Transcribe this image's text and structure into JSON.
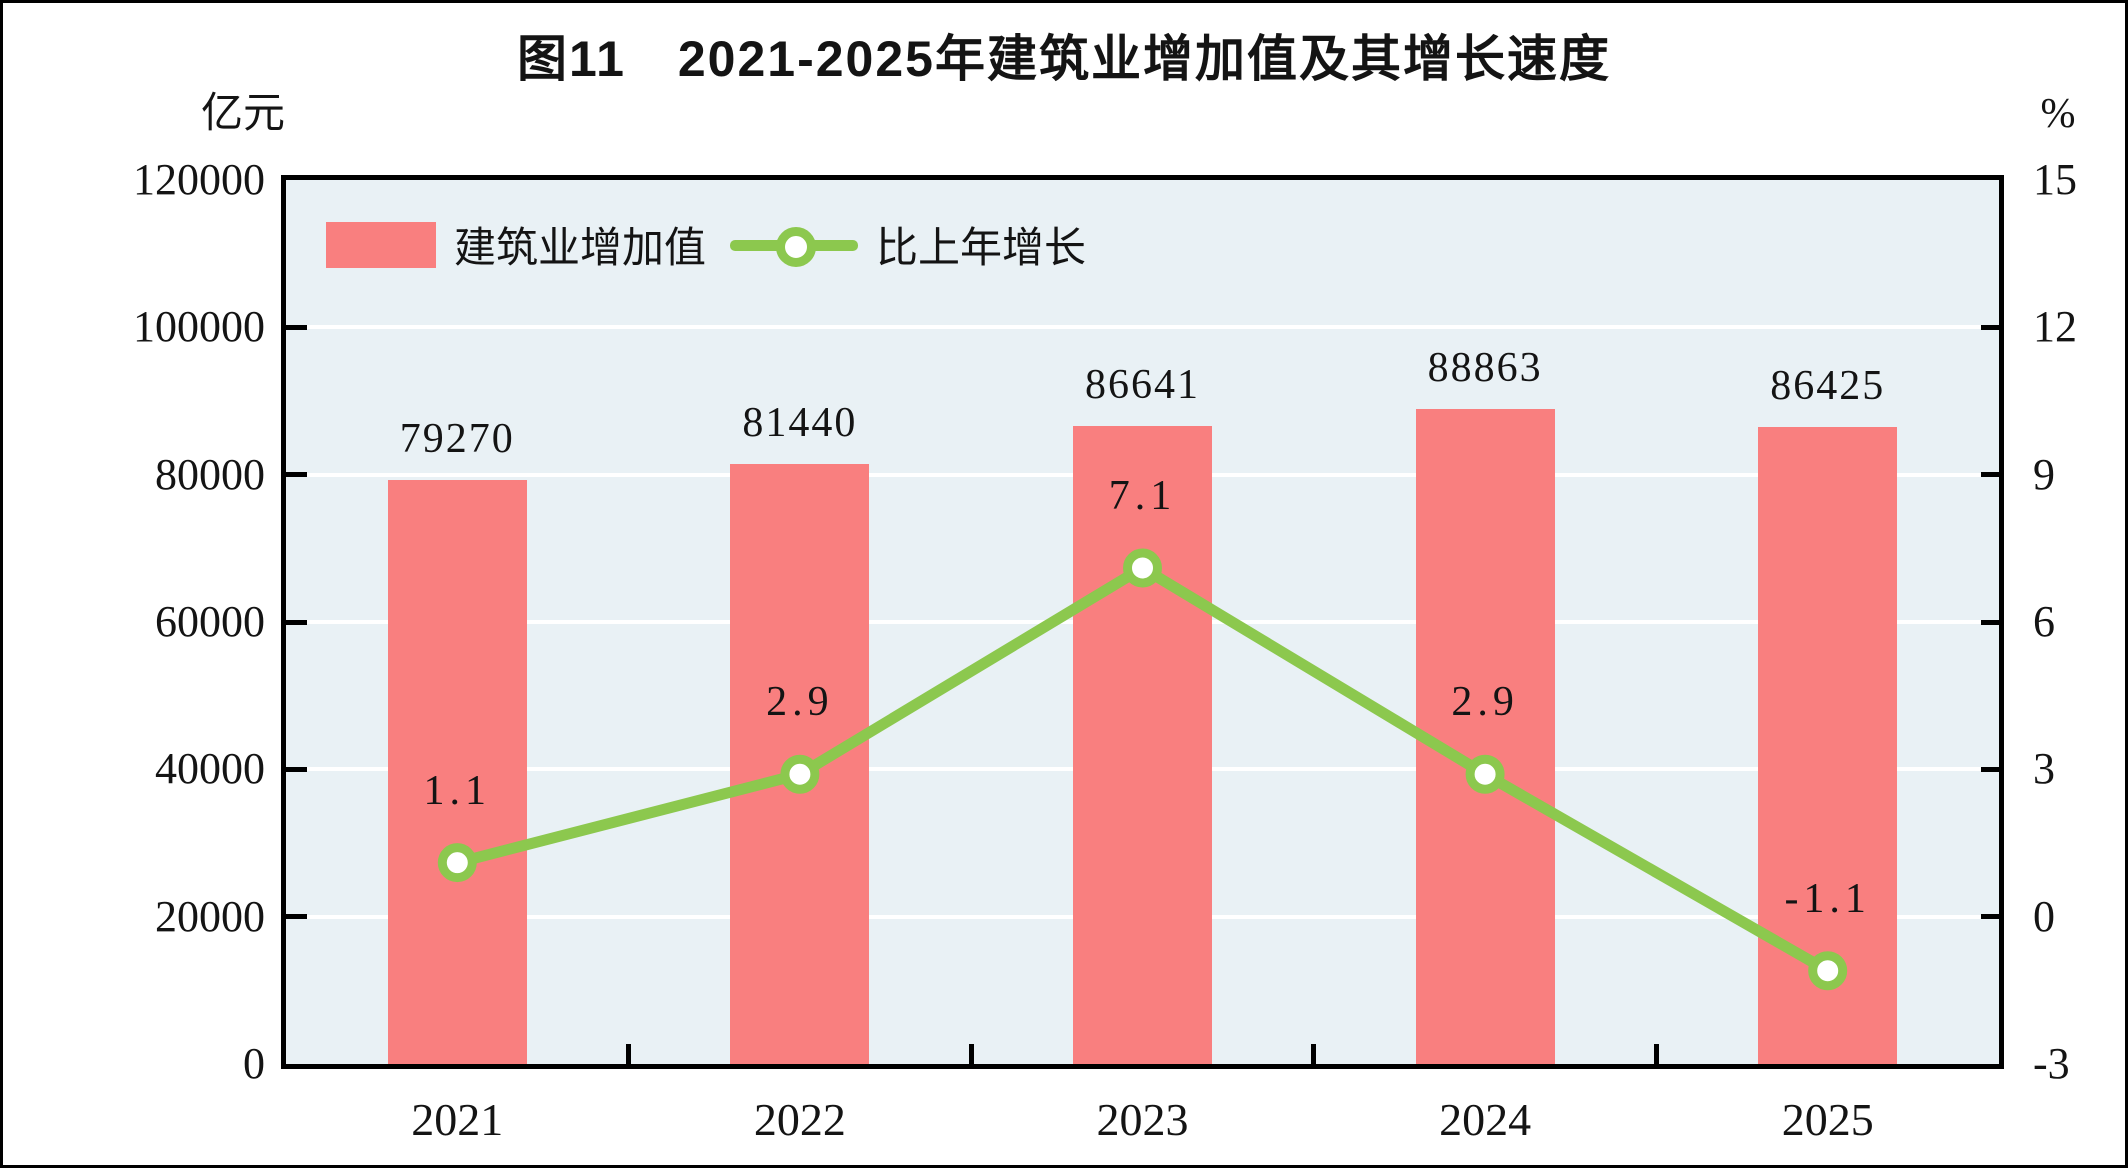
{
  "figure": {
    "title": "图11　2021-2025年建筑业增加值及其增长速度",
    "left_axis_unit": "亿元",
    "right_axis_unit": "%"
  },
  "legend": {
    "items": [
      {
        "label": "建筑业增加值",
        "marker": "bar-swatch"
      },
      {
        "label": "比上年增长",
        "marker": "line-with-dot"
      }
    ]
  },
  "chart_data": {
    "type": "bar",
    "subtype": "dual-axis bar + line",
    "title": "图11　2021-2025年建筑业增加值及其增长速度",
    "categories": [
      "2021",
      "2022",
      "2023",
      "2024",
      "2025"
    ],
    "series": [
      {
        "name": "建筑业增加值",
        "type": "bar",
        "axis": "left",
        "values": [
          79270,
          81440,
          86641,
          88863,
          86425
        ],
        "data_labels": [
          "79270",
          "81440",
          "86641",
          "88863",
          "86425"
        ]
      },
      {
        "name": "比上年增长",
        "type": "line",
        "axis": "right",
        "values": [
          1.1,
          2.9,
          7.1,
          2.9,
          -1.1
        ],
        "data_labels": [
          "1.1",
          "2.9",
          "7.1",
          "2.9",
          "-1.1"
        ]
      }
    ],
    "left_axis": {
      "label": "亿元",
      "min": 0,
      "max": 120000,
      "step": 20000,
      "ticks": [
        "120000",
        "100000",
        "80000",
        "60000",
        "40000",
        "20000",
        "0"
      ]
    },
    "right_axis": {
      "label": "%",
      "min": -3,
      "max": 15,
      "step": 3,
      "ticks": [
        "15",
        "12",
        "9",
        "6",
        "3",
        "0",
        "-3"
      ]
    },
    "grid": true,
    "legend_position": "top-left-inside"
  },
  "colors": {
    "bar": "#f97f7f",
    "line": "#8cc84e",
    "marker_fill": "#ffffff",
    "plot_background": "#e9f1f5",
    "gridline": "#ffffff",
    "axis": "#000000",
    "text": "#141414"
  }
}
